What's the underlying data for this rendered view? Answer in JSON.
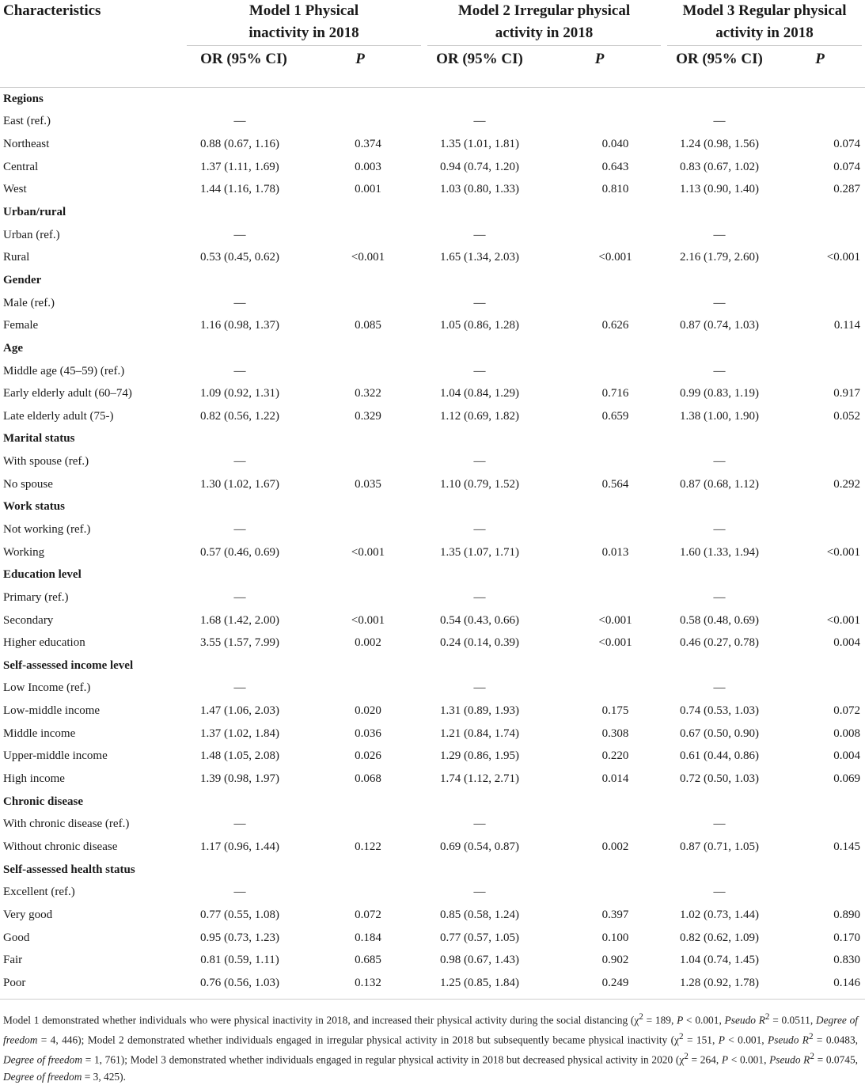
{
  "header": {
    "characteristics": "Characteristics",
    "model1": [
      "Model 1 Physical",
      "inactivity in 2018"
    ],
    "model2": [
      "Model 2 Irregular physical",
      "activity in 2018"
    ],
    "model3": [
      "Model 3 Regular physical",
      "activity in 2018"
    ],
    "or_label": "OR (95% CI)",
    "p_label": "P"
  },
  "rows": [
    {
      "label": "Regions",
      "section": true
    },
    {
      "label": "East (ref.)",
      "ref": true
    },
    {
      "label": "Northeast",
      "m1": [
        "0.88 (0.67, 1.16)",
        "0.374"
      ],
      "m2": [
        "1.35 (1.01, 1.81)",
        "0.040"
      ],
      "m3": [
        "1.24 (0.98, 1.56)",
        "0.074"
      ]
    },
    {
      "label": "Central",
      "m1": [
        "1.37 (1.11, 1.69)",
        "0.003"
      ],
      "m2": [
        "0.94 (0.74, 1.20)",
        "0.643"
      ],
      "m3": [
        "0.83 (0.67, 1.02)",
        "0.074"
      ]
    },
    {
      "label": "West",
      "m1": [
        "1.44 (1.16, 1.78)",
        "0.001"
      ],
      "m2": [
        "1.03 (0.80, 1.33)",
        "0.810"
      ],
      "m3": [
        "1.13 (0.90, 1.40)",
        "0.287"
      ]
    },
    {
      "label": "Urban/rural",
      "section": true
    },
    {
      "label": "Urban (ref.)",
      "ref": true
    },
    {
      "label": "Rural",
      "m1": [
        "0.53 (0.45, 0.62)",
        "<0.001"
      ],
      "m2": [
        "1.65 (1.34, 2.03)",
        "<0.001"
      ],
      "m3": [
        "2.16 (1.79, 2.60)",
        "<0.001"
      ]
    },
    {
      "label": "Gender",
      "section": true
    },
    {
      "label": "Male (ref.)",
      "ref": true
    },
    {
      "label": "Female",
      "m1": [
        "1.16 (0.98, 1.37)",
        "0.085"
      ],
      "m2": [
        "1.05 (0.86, 1.28)",
        "0.626"
      ],
      "m3": [
        "0.87 (0.74, 1.03)",
        "0.114"
      ]
    },
    {
      "label": "Age",
      "section": true
    },
    {
      "label": "Middle age (45–59) (ref.)",
      "ref": true
    },
    {
      "label": "Early elderly adult (60–74)",
      "m1": [
        "1.09 (0.92, 1.31)",
        "0.322"
      ],
      "m2": [
        "1.04 (0.84, 1.29)",
        "0.716"
      ],
      "m3": [
        "0.99 (0.83, 1.19)",
        "0.917"
      ]
    },
    {
      "label": "Late elderly adult (75-)",
      "m1": [
        "0.82 (0.56, 1.22)",
        "0.329"
      ],
      "m2": [
        "1.12 (0.69, 1.82)",
        "0.659"
      ],
      "m3": [
        "1.38 (1.00, 1.90)",
        "0.052"
      ]
    },
    {
      "label": "Marital status",
      "section": true
    },
    {
      "label": "With spouse (ref.)",
      "ref": true
    },
    {
      "label": "No spouse",
      "m1": [
        "1.30 (1.02, 1.67)",
        "0.035"
      ],
      "m2": [
        "1.10 (0.79, 1.52)",
        "0.564"
      ],
      "m3": [
        "0.87 (0.68, 1.12)",
        "0.292"
      ]
    },
    {
      "label": "Work status",
      "section": true
    },
    {
      "label": "Not working (ref.)",
      "ref": true
    },
    {
      "label": "Working",
      "m1": [
        "0.57 (0.46, 0.69)",
        "<0.001"
      ],
      "m2": [
        "1.35 (1.07, 1.71)",
        "0.013"
      ],
      "m3": [
        "1.60 (1.33, 1.94)",
        "<0.001"
      ]
    },
    {
      "label": "Education level",
      "section": true
    },
    {
      "label": "Primary (ref.)",
      "ref": true
    },
    {
      "label": "Secondary",
      "m1": [
        "1.68 (1.42, 2.00)",
        "<0.001"
      ],
      "m2": [
        "0.54 (0.43, 0.66)",
        "<0.001"
      ],
      "m3": [
        "0.58 (0.48, 0.69)",
        "<0.001"
      ]
    },
    {
      "label": "Higher education",
      "m1": [
        "3.55 (1.57, 7.99)",
        "0.002"
      ],
      "m2": [
        "0.24 (0.14, 0.39)",
        "<0.001"
      ],
      "m3": [
        "0.46 (0.27, 0.78)",
        "0.004"
      ]
    },
    {
      "label": "Self-assessed income level",
      "section": true
    },
    {
      "label": "Low Income (ref.)",
      "ref": true
    },
    {
      "label": "Low-middle income",
      "m1": [
        "1.47 (1.06, 2.03)",
        "0.020"
      ],
      "m2": [
        "1.31 (0.89, 1.93)",
        "0.175"
      ],
      "m3": [
        "0.74 (0.53, 1.03)",
        "0.072"
      ]
    },
    {
      "label": "Middle income",
      "m1": [
        "1.37 (1.02, 1.84)",
        "0.036"
      ],
      "m2": [
        "1.21 (0.84, 1.74)",
        "0.308"
      ],
      "m3": [
        "0.67 (0.50, 0.90)",
        "0.008"
      ]
    },
    {
      "label": "Upper-middle income",
      "m1": [
        "1.48 (1.05, 2.08)",
        "0.026"
      ],
      "m2": [
        "1.29 (0.86, 1.95)",
        "0.220"
      ],
      "m3": [
        "0.61 (0.44, 0.86)",
        "0.004"
      ]
    },
    {
      "label": "High income",
      "m1": [
        "1.39 (0.98, 1.97)",
        "0.068"
      ],
      "m2": [
        "1.74 (1.12, 2.71)",
        "0.014"
      ],
      "m3": [
        "0.72 (0.50, 1.03)",
        "0.069"
      ]
    },
    {
      "label": "Chronic disease",
      "section": true
    },
    {
      "label": "With chronic disease (ref.)",
      "ref": true
    },
    {
      "label": "Without chronic disease",
      "m1": [
        "1.17 (0.96, 1.44)",
        "0.122"
      ],
      "m2": [
        "0.69 (0.54, 0.87)",
        "0.002"
      ],
      "m3": [
        "0.87 (0.71, 1.05)",
        "0.145"
      ]
    },
    {
      "label": "Self-assessed health status",
      "section": true
    },
    {
      "label": "Excellent (ref.)",
      "ref": true
    },
    {
      "label": "Very good",
      "m1": [
        "0.77 (0.55, 1.08)",
        "0.072"
      ],
      "m2": [
        "0.85 (0.58, 1.24)",
        "0.397"
      ],
      "m3": [
        "1.02 (0.73, 1.44)",
        "0.890"
      ]
    },
    {
      "label": "Good",
      "m1": [
        "0.95 (0.73, 1.23)",
        "0.184"
      ],
      "m2": [
        "0.77 (0.57, 1.05)",
        "0.100"
      ],
      "m3": [
        "0.82 (0.62, 1.09)",
        "0.170"
      ]
    },
    {
      "label": "Fair",
      "m1": [
        "0.81 (0.59, 1.11)",
        "0.685"
      ],
      "m2": [
        "0.98 (0.67, 1.43)",
        "0.902"
      ],
      "m3": [
        "1.04 (0.74, 1.45)",
        "0.830"
      ]
    },
    {
      "label": "Poor",
      "m1": [
        "0.76 (0.56, 1.03)",
        "0.132"
      ],
      "m2": [
        "1.25 (0.85, 1.84)",
        "0.249"
      ],
      "m3": [
        "1.28 (0.92, 1.78)",
        "0.146"
      ]
    }
  ],
  "ref_dash": "—",
  "footnote": {
    "m1_a": "Model 1 demonstrated whether individuals who were physical inactivity in 2018, and increased their physical activity during the social distancing (χ",
    "m1_b": " = 189, ",
    "m1_c": " < 0.001, ",
    "m1_d": " = 0.0511, ",
    "m1_e": " = 4, 446); Model 2 demonstrated whether individuals engaged in irregular physical activity in 2018 but subsequently became physical inactivity (χ",
    "m2_b": " = 151, ",
    "m2_c": " < 0.001, ",
    "m2_d": " = 0.0483, ",
    "m2_e": " = 1, 761); Model 3 demonstrated whether individuals engaged in regular physical activity in 2018 but decreased physical activity in 2020 (χ",
    "m3_b": " = 264, ",
    "m3_c": " < 0.001, ",
    "m3_d": " = 0.0745, ",
    "m3_e": " = 3, 425).",
    "sq": "2",
    "p": "P",
    "pseudo": "Pseudo R",
    "dof": "Degree of freedom"
  }
}
